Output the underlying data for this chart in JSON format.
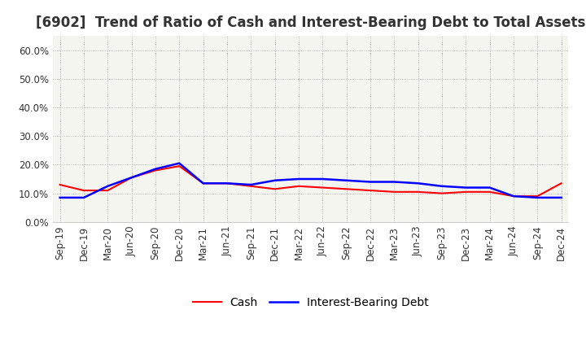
{
  "title": "[6902]  Trend of Ratio of Cash and Interest-Bearing Debt to Total Assets",
  "x_labels": [
    "Sep-19",
    "Dec-19",
    "Mar-20",
    "Jun-20",
    "Sep-20",
    "Dec-20",
    "Mar-21",
    "Jun-21",
    "Sep-21",
    "Dec-21",
    "Mar-22",
    "Jun-22",
    "Sep-22",
    "Dec-22",
    "Mar-23",
    "Jun-23",
    "Sep-23",
    "Dec-23",
    "Mar-24",
    "Jun-24",
    "Sep-24",
    "Dec-24"
  ],
  "cash": [
    13.0,
    11.0,
    11.0,
    15.5,
    18.0,
    19.5,
    13.5,
    13.5,
    12.5,
    11.5,
    12.5,
    12.0,
    11.5,
    11.0,
    10.5,
    10.5,
    10.0,
    10.5,
    10.5,
    9.0,
    9.0,
    13.5
  ],
  "interest_bearing_debt": [
    8.5,
    8.5,
    12.5,
    15.5,
    18.5,
    20.5,
    13.5,
    13.5,
    13.0,
    14.5,
    15.0,
    15.0,
    14.5,
    14.0,
    14.0,
    13.5,
    12.5,
    12.0,
    12.0,
    9.0,
    8.5,
    8.5
  ],
  "cash_color": "#ff0000",
  "debt_color": "#0000ff",
  "ylim": [
    0,
    65
  ],
  "yticks": [
    0,
    10,
    20,
    30,
    40,
    50,
    60
  ],
  "plot_bg_color": "#f5f5f0",
  "fig_bg_color": "#ffffff",
  "grid_color": "#aaaaaa",
  "title_fontsize": 12,
  "tick_fontsize": 8.5,
  "legend_fontsize": 10
}
